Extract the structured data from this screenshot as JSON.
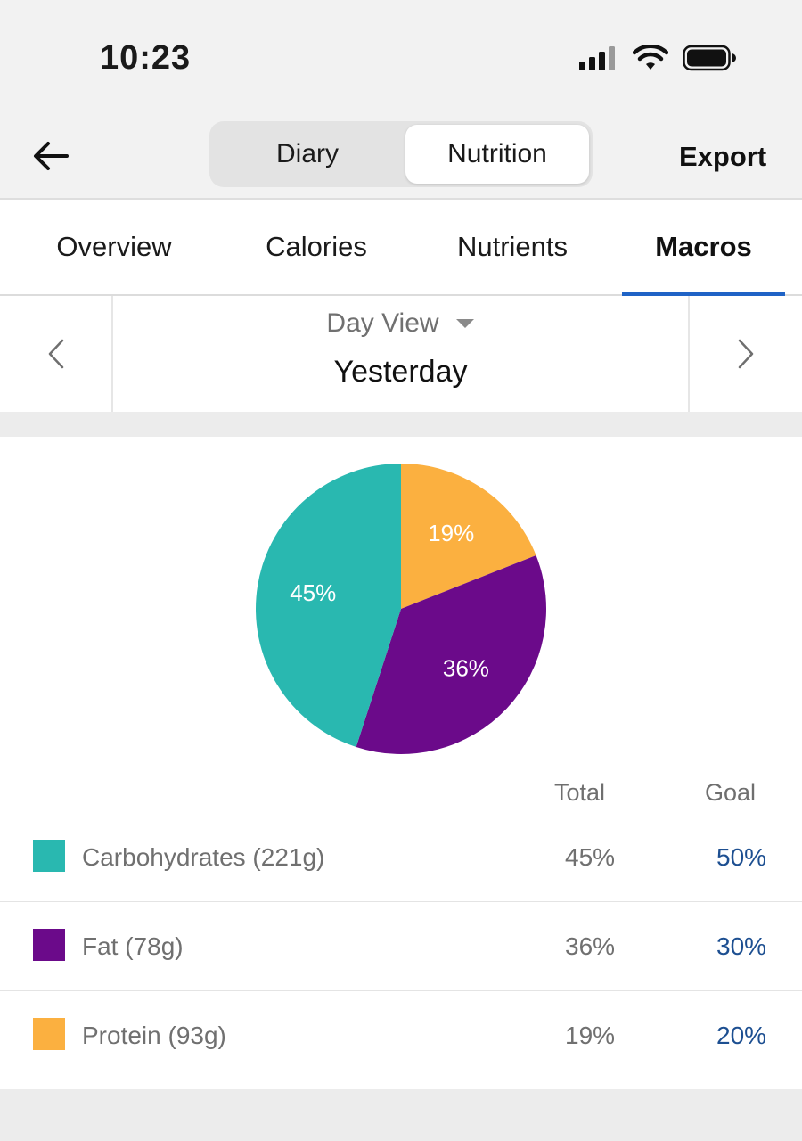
{
  "status_bar": {
    "time": "10:23",
    "icons": [
      "signal-icon",
      "wifi-icon",
      "battery-icon"
    ]
  },
  "header": {
    "back_icon": "arrow-left-icon",
    "segments": [
      {
        "label": "Diary",
        "selected": false
      },
      {
        "label": "Nutrition",
        "selected": true
      }
    ],
    "export_label": "Export"
  },
  "tabs": [
    {
      "label": "Overview",
      "active": false
    },
    {
      "label": "Calories",
      "active": false
    },
    {
      "label": "Nutrients",
      "active": false
    },
    {
      "label": "Macros",
      "active": true
    }
  ],
  "date_selector": {
    "view_label": "Day View",
    "date_label": "Yesterday",
    "prev_icon": "chevron-left-icon",
    "next_icon": "chevron-right-icon",
    "dropdown_icon": "caret-down-icon"
  },
  "colors": {
    "accent": "#1f63c6",
    "carbohydrates": "#29b8b0",
    "fat": "#6b0a8a",
    "protein": "#fbb040",
    "goal_text": "#1d4f91"
  },
  "chart_data": {
    "type": "pie",
    "start_angle_deg": 0,
    "slices": [
      {
        "label": "Protein",
        "value": 19,
        "display": "19%",
        "color": "#fbb040"
      },
      {
        "label": "Fat",
        "value": 36,
        "display": "36%",
        "color": "#6b0a8a"
      },
      {
        "label": "Carbohydrates",
        "value": 45,
        "display": "45%",
        "color": "#29b8b0"
      }
    ]
  },
  "macros_table": {
    "headers": {
      "total": "Total",
      "goal": "Goal"
    },
    "rows": [
      {
        "name": "Carbohydrates (221g)",
        "total": "45%",
        "goal": "50%",
        "color": "#29b8b0"
      },
      {
        "name": "Fat (78g)",
        "total": "36%",
        "goal": "30%",
        "color": "#6b0a8a"
      },
      {
        "name": "Protein (93g)",
        "total": "19%",
        "goal": "20%",
        "color": "#fbb040"
      }
    ]
  }
}
